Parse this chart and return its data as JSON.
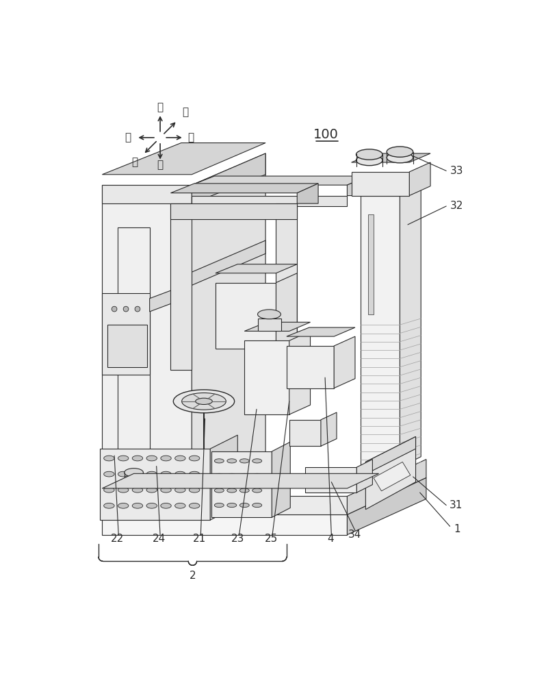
{
  "title": "100",
  "background_color": "#ffffff",
  "line_color": "#2a2a2a",
  "light_gray": "#d0d0d0",
  "mid_gray": "#a0a0a0",
  "dark_gray": "#606060",
  "labels": {
    "top_label": "100",
    "directions": {
      "up": "上",
      "down": "下",
      "left": "左",
      "right": "右",
      "front": "前",
      "back": "后"
    },
    "part_labels": [
      "1",
      "2",
      "4",
      "21",
      "22",
      "23",
      "24",
      "25",
      "31",
      "32",
      "33",
      "34"
    ]
  },
  "figsize": [
    7.79,
    10.0
  ],
  "dpi": 100
}
